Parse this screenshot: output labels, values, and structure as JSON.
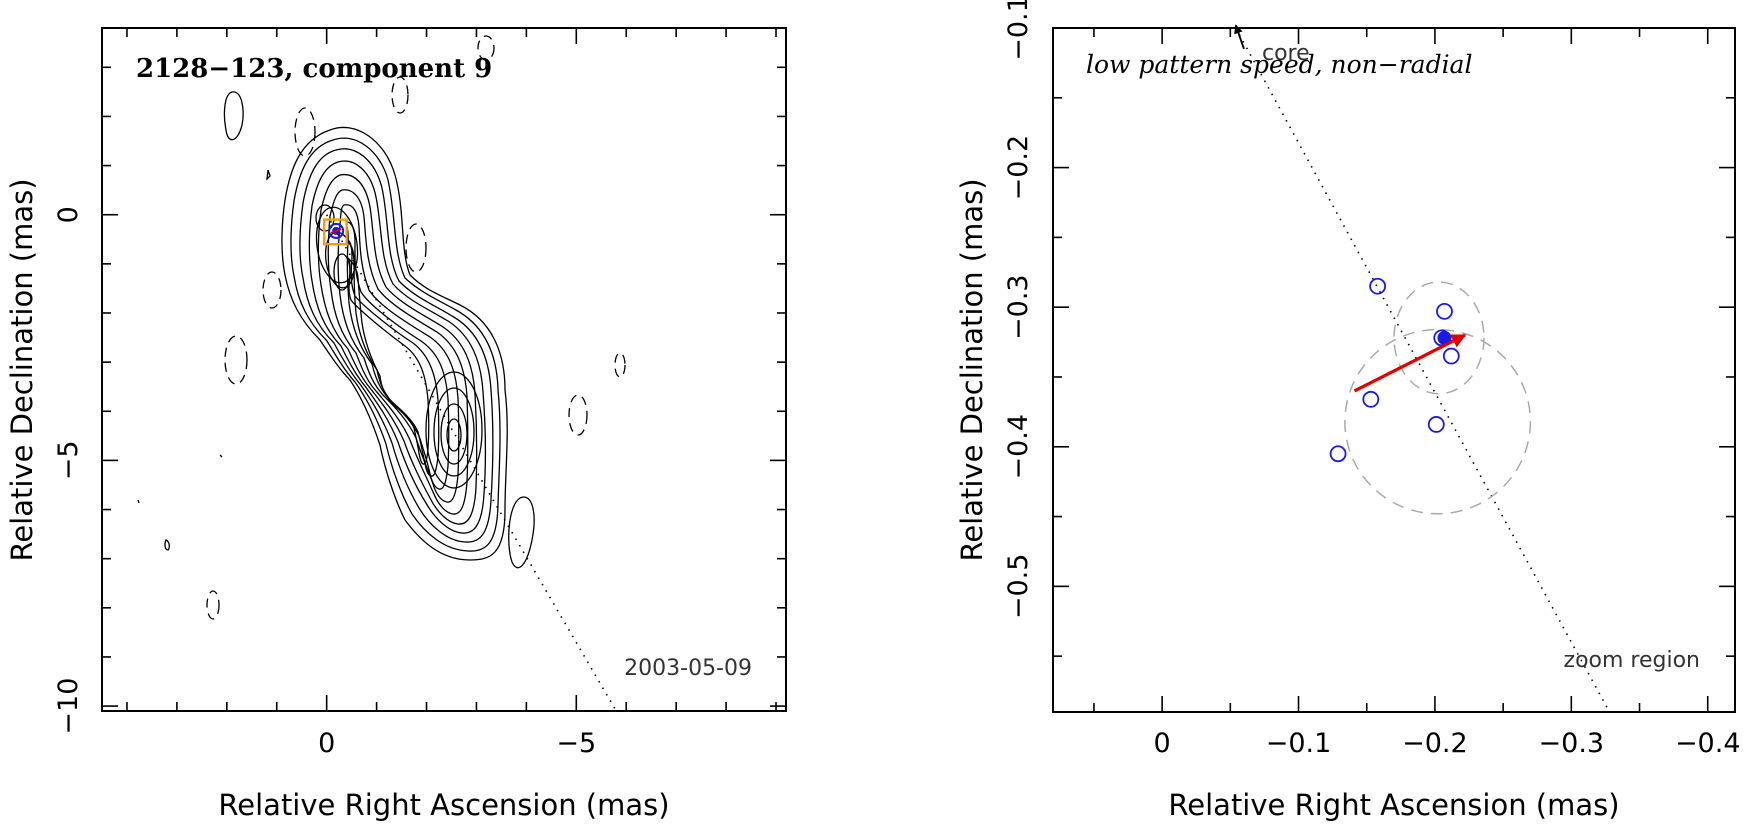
{
  "chart_data": [
    {
      "type": "contour",
      "title": "2128−123, component 9",
      "epoch": "2003-05-09",
      "xlabel": "Relative Right Ascension (mas)",
      "ylabel": "Relative Declination (mas)",
      "xlim": [
        4.5,
        -9.2
      ],
      "ylim": [
        -10.1,
        3.8
      ],
      "x_ticks": [
        0,
        -5
      ],
      "x_tick_labels": [
        "0",
        "−5"
      ],
      "y_ticks": [
        0,
        -5,
        -10
      ],
      "y_tick_labels": [
        "0",
        "−5",
        "−10"
      ],
      "component_position": {
        "ra": -0.19,
        "dec": -0.33
      },
      "peak_positions": [
        {
          "ra": -0.5,
          "dec": -1.1
        },
        {
          "ra": -2.8,
          "dec": -4.5
        }
      ],
      "trajectory_line": [
        {
          "ra": 0,
          "dec": 0
        },
        {
          "ra": -5.8,
          "dec": -10.1
        }
      ],
      "zoom_box": {
        "ra_range": [
          0.05,
          -0.4
        ],
        "dec_range": [
          -0.1,
          -0.6
        ]
      },
      "series": [
        {
          "name": "positive contours",
          "style": "solid",
          "levels": 12
        },
        {
          "name": "negative contours",
          "style": "dashed"
        }
      ]
    },
    {
      "type": "scatter",
      "title": "low pattern speed, non−radial",
      "region_label": "zoom region",
      "core_label": "core",
      "xlabel": "Relative Right Ascension (mas)",
      "ylabel": "Relative Declination (mas)",
      "xlim": [
        0.08,
        -0.42
      ],
      "ylim": [
        -0.59,
        -0.1
      ],
      "x_ticks": [
        0,
        -0.1,
        -0.2,
        -0.3,
        -0.4
      ],
      "x_tick_labels": [
        "0",
        "−0.1",
        "−0.2",
        "−0.3",
        "−0.4"
      ],
      "y_ticks": [
        -0.1,
        -0.2,
        -0.3,
        -0.4,
        -0.5
      ],
      "y_tick_labels": [
        "−0.1",
        "−0.2",
        "−0.3",
        "−0.4",
        "−0.5"
      ],
      "positions": [
        {
          "x": -0.158,
          "y": -0.285
        },
        {
          "x": -0.207,
          "y": -0.303
        },
        {
          "x": -0.205,
          "y": -0.322
        },
        {
          "x": -0.212,
          "y": -0.335
        },
        {
          "x": -0.153,
          "y": -0.366
        },
        {
          "x": -0.201,
          "y": -0.384
        },
        {
          "x": -0.129,
          "y": -0.405
        }
      ],
      "mean_position": {
        "x": -0.207,
        "y": -0.322
      },
      "error_ellipses": [
        {
          "cx": -0.203,
          "cy": -0.322,
          "rx": 0.033,
          "ry": 0.04
        },
        {
          "cx": -0.202,
          "cy": -0.382,
          "rx": 0.068,
          "ry": 0.066
        }
      ],
      "velocity_vector": {
        "from": {
          "x": -0.141,
          "y": -0.36
        },
        "to": {
          "x": -0.222,
          "y": -0.32
        }
      },
      "trajectory_line": [
        {
          "x": -0.054,
          "y": -0.1
        },
        {
          "x": -0.328,
          "y": -0.59
        }
      ],
      "core_arrow": {
        "from": {
          "x": -0.06,
          "y": -0.115
        },
        "to": {
          "x": -0.054,
          "y": -0.098
        }
      }
    }
  ],
  "colors": {
    "contour": "#000000",
    "position_marker": "#1a1ae6",
    "velocity_vector": "#e00000",
    "error_ellipse": "#aaaaaa",
    "zoom_box": "#f0a000"
  }
}
